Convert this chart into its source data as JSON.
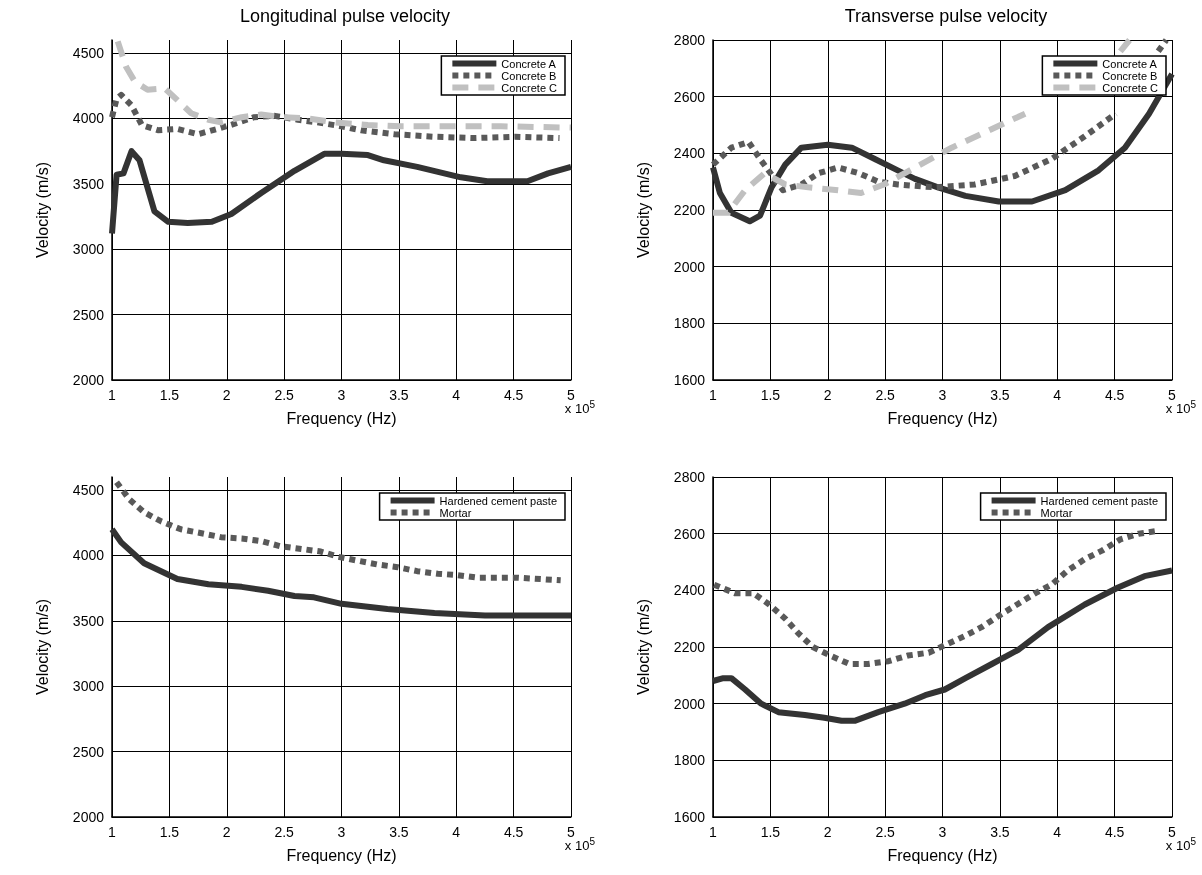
{
  "chart_data": [
    {
      "type": "line",
      "title": "Longitudinal pulse velocity",
      "xlabel": "Frequency (Hz)",
      "ylabel": "Velocity (m/s)",
      "annotations": [
        "x 10$^{5}$"
      ],
      "xlim": [
        1,
        5
      ],
      "xticks": [
        1,
        1.5,
        2,
        2.5,
        3,
        3.5,
        4,
        4.5,
        5
      ],
      "ylim": [
        2000,
        4600
      ],
      "yticks": [
        2000,
        2500,
        3000,
        3500,
        4000,
        4500
      ],
      "grid": true,
      "legend": "top right",
      "series": [
        {
          "name": "Concrete A",
          "color": "#333333",
          "line_style": "solid",
          "x": [
            1,
            1.04,
            1.1,
            1.17,
            1.24,
            1.37,
            1.49,
            1.66,
            1.87,
            2.04,
            2.3,
            2.59,
            2.85,
            3,
            3.23,
            3.37,
            3.66,
            4.04,
            4.27,
            4.62,
            4.8,
            5
          ],
          "values": [
            3120,
            3570,
            3580,
            3750,
            3680,
            3290,
            3210,
            3200,
            3210,
            3270,
            3430,
            3600,
            3730,
            3730,
            3720,
            3680,
            3630,
            3550,
            3520,
            3520,
            3580,
            3630
          ]
        },
        {
          "name": "Concrete B",
          "color": "#595959",
          "line_style": "dotted",
          "x": [
            1,
            1.04,
            1.08,
            1.17,
            1.26,
            1.4,
            1.57,
            1.75,
            1.92,
            2.07,
            2.24,
            2.42,
            2.62,
            2.79,
            3,
            3.17,
            3.46,
            3.81,
            4.16,
            4.51,
            4.9
          ],
          "values": [
            4010,
            4150,
            4180,
            4100,
            3950,
            3910,
            3920,
            3880,
            3920,
            3960,
            4010,
            4020,
            3990,
            3970,
            3940,
            3910,
            3880,
            3860,
            3850,
            3860,
            3850
          ]
        },
        {
          "name": "Concrete C",
          "color": "#c0c0c0",
          "line_style": "dashed",
          "x": [
            1.05,
            1.12,
            1.2,
            1.31,
            1.46,
            1.57,
            1.69,
            1.84,
            1.95,
            2.13,
            2.3,
            2.47,
            2.71,
            2.94,
            3.23,
            3.52,
            3.81,
            4.39,
            5
          ],
          "values": [
            4590,
            4400,
            4280,
            4220,
            4230,
            4140,
            4040,
            3990,
            3970,
            4010,
            4030,
            4010,
            4000,
            3970,
            3950,
            3940,
            3940,
            3940,
            3930
          ]
        }
      ]
    },
    {
      "type": "line",
      "title": "Transverse pulse velocity",
      "xlabel": "Frequency (Hz)",
      "ylabel": "Velocity (m/s)",
      "annotations": [
        "x 10$^{5}$"
      ],
      "xlim": [
        1,
        5
      ],
      "xticks": [
        1,
        1.5,
        2,
        2.5,
        3,
        3.5,
        4,
        4.5,
        5
      ],
      "ylim": [
        1600,
        2800
      ],
      "yticks": [
        1600,
        1800,
        2000,
        2200,
        2400,
        2600,
        2800
      ],
      "grid": true,
      "legend": "top right",
      "series": [
        {
          "name": "Concrete A",
          "color": "#333333",
          "line_style": "solid",
          "x": [
            1,
            1.06,
            1.16,
            1.32,
            1.41,
            1.51,
            1.63,
            1.77,
            2,
            2.21,
            2.41,
            2.61,
            2.76,
            2.96,
            3.2,
            3.49,
            3.78,
            4.07,
            4.36,
            4.59,
            4.8,
            5
          ],
          "values": [
            2350,
            2260,
            2190,
            2160,
            2180,
            2280,
            2360,
            2420,
            2430,
            2420,
            2380,
            2340,
            2310,
            2280,
            2250,
            2230,
            2230,
            2270,
            2340,
            2420,
            2540,
            2680
          ]
        },
        {
          "name": "Concrete B",
          "color": "#595959",
          "line_style": "dotted",
          "x": [
            1,
            1.16,
            1.31,
            1.41,
            1.61,
            1.77,
            1.92,
            2.09,
            2.27,
            2.44,
            2.61,
            2.93,
            3.28,
            3.63,
            3.95,
            4.24,
            4.51,
            4.7,
            4.88,
            4.95
          ],
          "values": [
            2360,
            2420,
            2440,
            2380,
            2270,
            2290,
            2330,
            2350,
            2330,
            2300,
            2290,
            2280,
            2290,
            2320,
            2380,
            2460,
            2540,
            null,
            2760,
            2800
          ]
        },
        {
          "name": "Concrete C",
          "color": "#c0c0c0",
          "line_style": "dashed",
          "x": [
            1,
            1.13,
            1.28,
            1.45,
            1.63,
            1.83,
            2.09,
            2.29,
            2.49,
            2.76,
            3.08,
            3.4,
            3.72,
            4.3,
            4.55,
            4.63
          ],
          "values": [
            2190,
            2190,
            2270,
            2330,
            2290,
            2280,
            2270,
            2260,
            2290,
            2350,
            2420,
            2480,
            2540,
            null,
            2760,
            2800
          ]
        }
      ]
    },
    {
      "type": "line",
      "xlabel": "Frequency (Hz)",
      "ylabel": "Velocity (m/s)",
      "annotations": [
        "x 10$^{5}$"
      ],
      "xlim": [
        1,
        5
      ],
      "xticks": [
        1,
        1.5,
        2,
        2.5,
        3,
        3.5,
        4,
        4.5,
        5
      ],
      "ylim": [
        2000,
        4600
      ],
      "yticks": [
        2000,
        2500,
        3000,
        3500,
        4000,
        4500
      ],
      "grid": true,
      "legend": "top right",
      "series": [
        {
          "name": "Hardened cement paste",
          "color": "#333333",
          "line_style": "solid",
          "x": [
            1,
            1.08,
            1.28,
            1.57,
            1.84,
            2.13,
            2.36,
            2.59,
            2.76,
            3,
            3.4,
            3.81,
            4.25,
            5
          ],
          "values": [
            4200,
            4100,
            3940,
            3820,
            3780,
            3760,
            3730,
            3690,
            3680,
            3630,
            3590,
            3560,
            3540,
            3540
          ]
        },
        {
          "name": "Mortar",
          "color": "#595959",
          "line_style": "dotted",
          "x": [
            1.04,
            1.15,
            1.28,
            1.43,
            1.6,
            1.78,
            1.95,
            2.13,
            2.3,
            2.47,
            2.65,
            2.82,
            2.97,
            3.14,
            3.32,
            3.49,
            3.66,
            3.84,
            4.01,
            4.19,
            4.54,
            4.91
          ],
          "values": [
            4560,
            4430,
            4330,
            4260,
            4200,
            4170,
            4140,
            4130,
            4110,
            4070,
            4050,
            4030,
            3990,
            3960,
            3930,
            3910,
            3880,
            3860,
            3850,
            3830,
            3830,
            3810
          ]
        }
      ]
    },
    {
      "type": "line",
      "xlabel": "Frequency (Hz)",
      "ylabel": "Velocity (m/s)",
      "annotations": [
        "x 10$^{5}$"
      ],
      "xlim": [
        1,
        5
      ],
      "xticks": [
        1,
        1.5,
        2,
        2.5,
        3,
        3.5,
        4,
        4.5,
        5
      ],
      "ylim": [
        1600,
        2800
      ],
      "yticks": [
        1600,
        1800,
        2000,
        2200,
        2400,
        2600,
        2800
      ],
      "grid": true,
      "legend": "top right",
      "series": [
        {
          "name": "Hardened cement paste",
          "color": "#333333",
          "line_style": "solid",
          "x": [
            1,
            1.09,
            1.16,
            1.28,
            1.42,
            1.57,
            1.8,
            1.97,
            2.12,
            2.24,
            2.44,
            2.67,
            2.85,
            3.02,
            3.2,
            3.43,
            3.66,
            3.92,
            4.24,
            4.53,
            4.76,
            5
          ],
          "values": [
            2080,
            2090,
            2090,
            2050,
            2000,
            1970,
            1960,
            1950,
            1940,
            1940,
            1970,
            2000,
            2030,
            2050,
            2090,
            2140,
            2190,
            2270,
            2350,
            2410,
            2450,
            2470
          ]
        },
        {
          "name": "Mortar",
          "color": "#595959",
          "line_style": "dotted",
          "x": [
            1.01,
            1.19,
            1.35,
            1.49,
            1.63,
            1.74,
            1.87,
            2.02,
            2.19,
            2.35,
            2.53,
            2.7,
            2.88,
            3.04,
            3.2,
            3.34,
            3.49,
            3.65,
            3.81,
            3.95,
            4.09,
            4.24,
            4.39,
            4.55,
            4.71,
            4.88
          ],
          "values": [
            2420,
            2390,
            2390,
            2350,
            2300,
            2250,
            2200,
            2170,
            2140,
            2140,
            2150,
            2170,
            2180,
            2210,
            2240,
            2270,
            2310,
            2350,
            2390,
            2420,
            2470,
            2510,
            2540,
            2580,
            2600,
            2610
          ]
        }
      ]
    }
  ]
}
